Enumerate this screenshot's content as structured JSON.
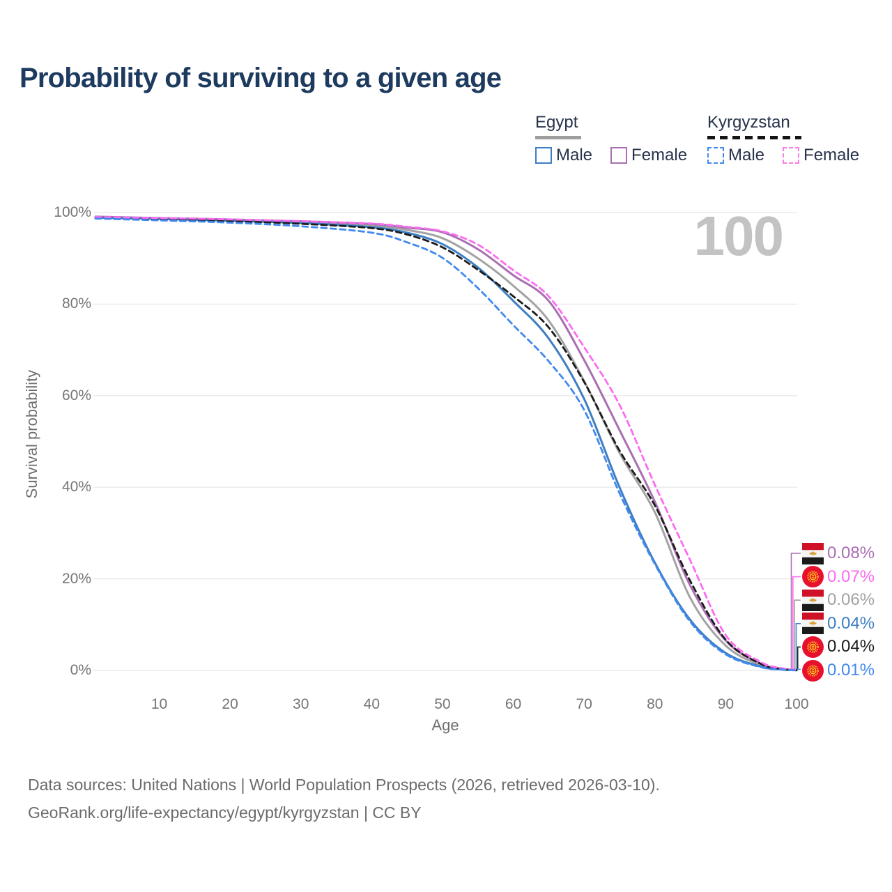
{
  "page": {
    "title": "Probability of surviving to a given age",
    "watermark": "100"
  },
  "legend": {
    "groups": [
      {
        "label": "Egypt",
        "underline_style": "solid",
        "underline_color": "#9e9e9e",
        "items": [
          {
            "label": "Male",
            "color": "#3d7ec2",
            "dashed": false
          },
          {
            "label": "Female",
            "color": "#a96fb2",
            "dashed": false
          }
        ]
      },
      {
        "label": "Kyrgyzstan",
        "underline_style": "dashed",
        "underline_color": "#151515",
        "items": [
          {
            "label": "Male",
            "color": "#4189f0",
            "dashed": true
          },
          {
            "label": "Female",
            "color": "#fb7ce4",
            "dashed": true
          }
        ]
      }
    ]
  },
  "chart_data": {
    "type": "line",
    "title": "Probability of surviving to a given age",
    "xlabel": "Age",
    "ylabel": "Survival probability",
    "xlim": [
      0,
      100
    ],
    "ylim": [
      0,
      100
    ],
    "grid": "horizontal",
    "legend_position": "top-right",
    "x_ticks": [
      10,
      20,
      30,
      40,
      50,
      60,
      70,
      80,
      90,
      100
    ],
    "y_ticks": [
      {
        "value": 0,
        "label": "0%"
      },
      {
        "value": 20,
        "label": "20%"
      },
      {
        "value": 40,
        "label": "40%"
      },
      {
        "value": 60,
        "label": "60%"
      },
      {
        "value": 80,
        "label": "80%"
      },
      {
        "value": 100,
        "label": "100%"
      }
    ],
    "ages": [
      1,
      10,
      20,
      30,
      40,
      45,
      50,
      55,
      60,
      65,
      70,
      75,
      80,
      85,
      90,
      95,
      98,
      100
    ],
    "series": [
      {
        "id": "egypt-both",
        "name": "Egypt (both sexes)",
        "country": "egypt",
        "color": "#a3a3a3",
        "dashed": false,
        "values": [
          99.0,
          98.7,
          98.35,
          97.9,
          97.2,
          96.2,
          94.4,
          90.0,
          84.0,
          76.4,
          63.2,
          47.5,
          34.5,
          15.8,
          5.4,
          1.1,
          0.28,
          0.06
        ]
      },
      {
        "id": "egypt-female",
        "name": "Egypt Female",
        "country": "egypt",
        "color": "#a96fb2",
        "dashed": false,
        "values": [
          99.1,
          98.8,
          98.5,
          98.1,
          97.5,
          96.7,
          95.7,
          92.0,
          86.3,
          80.7,
          67.8,
          52.5,
          36.8,
          18.5,
          6.5,
          1.4,
          0.35,
          0.08
        ]
      },
      {
        "id": "egypt-male",
        "name": "Egypt Male",
        "country": "egypt",
        "color": "#3d7ec2",
        "dashed": false,
        "values": [
          98.9,
          98.6,
          98.2,
          97.7,
          96.8,
          95.6,
          93.1,
          88.0,
          80.7,
          72.5,
          59.3,
          40.0,
          23.5,
          11.0,
          3.8,
          0.8,
          0.2,
          0.04
        ]
      },
      {
        "id": "kyrgyzstan-both",
        "name": "Kyrgyzstan (both sexes)",
        "country": "kyrgyzstan",
        "color": "#1c1c1c",
        "dashed": true,
        "values": [
          98.85,
          98.55,
          98.15,
          97.55,
          96.6,
          95.2,
          92.4,
          87.5,
          81.7,
          74.9,
          63.0,
          48.0,
          36.0,
          19.5,
          6.7,
          1.4,
          0.3,
          0.04
        ]
      },
      {
        "id": "kyrgyzstan-female",
        "name": "Kyrgyzstan Female",
        "country": "kyrgyzstan",
        "color": "#fb6cf0",
        "dashed": true,
        "values": [
          99.0,
          98.8,
          98.5,
          98.1,
          97.6,
          96.9,
          95.9,
          93.0,
          87.4,
          81.7,
          70.6,
          58.0,
          40.5,
          24.0,
          7.7,
          1.8,
          0.45,
          0.07
        ]
      },
      {
        "id": "kyrgyzstan-male",
        "name": "Kyrgyzstan Male",
        "country": "kyrgyzstan",
        "color": "#4189f0",
        "dashed": true,
        "values": [
          98.7,
          98.3,
          97.8,
          97.0,
          95.6,
          93.5,
          90.1,
          83.5,
          75.4,
          67.5,
          56.9,
          38.7,
          23.2,
          10.6,
          3.5,
          0.7,
          0.18,
          0.01
        ]
      }
    ],
    "end_rows": [
      {
        "series": "egypt-female",
        "label": "0.08%"
      },
      {
        "series": "kyrgyzstan-female",
        "label": "0.07%"
      },
      {
        "series": "egypt-both",
        "label": "0.06%"
      },
      {
        "series": "egypt-male",
        "label": "0.04%"
      },
      {
        "series": "kyrgyzstan-both",
        "label": "0.04%"
      },
      {
        "series": "kyrgyzstan-male",
        "label": "0.01%"
      }
    ]
  },
  "footer": {
    "line1": "Data sources: United Nations | World Population Prospects (2026, retrieved 2026-03-10).",
    "line2": "GeoRank.org/life-expectancy/egypt/kyrgyzstan | CC BY"
  }
}
